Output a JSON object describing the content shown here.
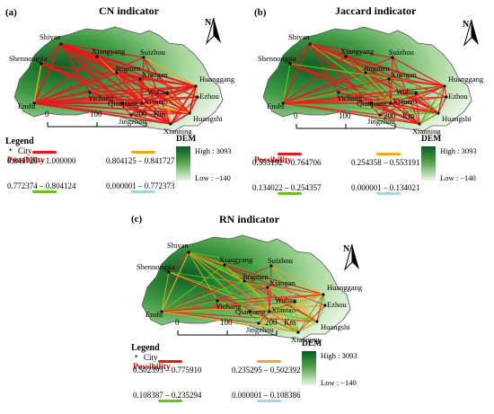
{
  "panels": [
    {
      "tag": "(a)",
      "title": "CN indicator",
      "cities": [
        "Shiyan",
        "Xiangyang",
        "Suizhou",
        "Shennongjia",
        "Jingmen",
        "Xiaogan",
        "Huanggang",
        "Yichang",
        "Wuhan",
        "Ezhou",
        "Enshi",
        "Qianjiang",
        "Xiantao",
        "Huangshi",
        "Jingzhou",
        "Xianning"
      ],
      "north_label": "N",
      "scalebar": {
        "ticks": [
          "0",
          "100",
          "200"
        ],
        "unit": "Km"
      },
      "legend": {
        "title": "Legend",
        "city_label": "City",
        "possibility_label": "Possibility",
        "classes": [
          {
            "range": "0.841728 – 1.000000",
            "color": "#e8191c"
          },
          {
            "range": "0.804125 – 0.841727",
            "color": "#f5a623"
          },
          {
            "range": "0.772374 – 0.804124",
            "color": "#62c424"
          },
          {
            "range": "0.000001 – 0.772373",
            "color": "#9fd8e8"
          }
        ]
      },
      "dem": {
        "title": "DEM",
        "high": "High : 3093",
        "low": "Low : −140"
      }
    },
    {
      "tag": "(b)",
      "title": "Jaccard indicator",
      "cities": [
        "Shiyan",
        "Xiangyang",
        "Suizhou",
        "Shennongjia",
        "Jingmen",
        "Xiaogan",
        "Huanggang",
        "Yichang",
        "Wuhan",
        "Ezhou",
        "Enshi",
        "Qianjiang",
        "Xiantao",
        "Huangshi",
        "Jingzhou",
        "Xianning"
      ],
      "north_label": "N",
      "scalebar": {
        "ticks": [
          "0",
          "100",
          "200"
        ],
        "unit": "Km"
      },
      "legend": {
        "title": "",
        "city_label": "",
        "possibility_label": "Possibility",
        "classes": [
          {
            "range": "0.553192 – 0.764706",
            "color": "#e8191c"
          },
          {
            "range": "0.254358 – 0.553191",
            "color": "#f5a623"
          },
          {
            "range": "0.134022 – 0.254357",
            "color": "#62c424"
          },
          {
            "range": "0.000001 – 0.134021",
            "color": "#9fd8e8"
          }
        ]
      },
      "dem": {
        "title": "DEM",
        "high": "High : 3093",
        "low": "Low : −140"
      }
    },
    {
      "tag": "(c)",
      "title": "RN indicator",
      "cities": [
        "Shiyan",
        "Xiangyang",
        "Suizhou",
        "Shennongjia",
        "Jingmen",
        "Xiaogan",
        "Huanggang",
        "Yichang",
        "Wuhan",
        "Ezhou",
        "Enshi",
        "Qianjiang",
        "Xiantao",
        "Huangshi",
        "Jingzhou",
        "Xianning"
      ],
      "north_label": "N",
      "scalebar": {
        "ticks": [
          "0",
          "100",
          "200"
        ],
        "unit": "Km"
      },
      "legend": {
        "title": "Legend",
        "city_label": "City",
        "possibility_label": "Possibility",
        "classes": [
          {
            "range": "0.502393 – 0.775910",
            "color": "#e8191c"
          },
          {
            "range": "0.235295 – 0.502392",
            "color": "#f5a623"
          },
          {
            "range": "0.108387 – 0.235294",
            "color": "#62c424"
          },
          {
            "range": "0.000001 – 0.108386",
            "color": "#9fd8e8"
          }
        ]
      },
      "dem": {
        "title": "DEM",
        "high": "High : 3093",
        "low": "Low : −140"
      }
    }
  ]
}
